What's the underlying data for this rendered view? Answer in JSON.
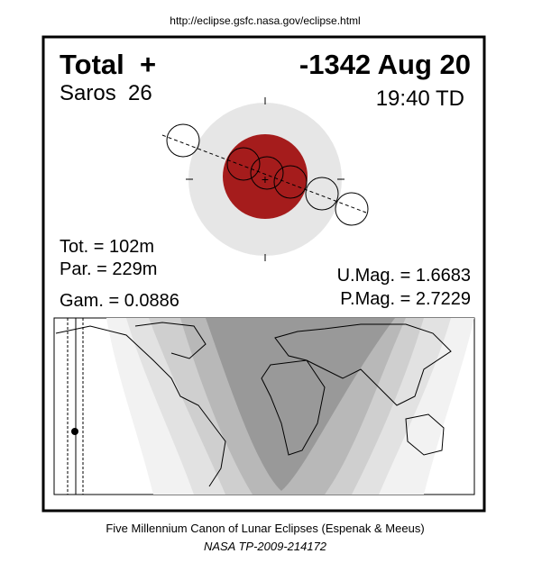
{
  "header": {
    "url": "http://eclipse.gsfc.nasa.gov/eclipse.html"
  },
  "panel": {
    "eclipse_type": "Total  +",
    "date": "-1342 Aug 20",
    "saros": "Saros  26",
    "time": "19:40 TD",
    "totality": "Tot. = 102m",
    "partial": "Par. = 229m",
    "gamma": "Gam. = 0.0886",
    "umbral_magnitude": "U.Mag. = 1.6683",
    "penumbral_magnitude": "P.Mag. = 2.7229"
  },
  "footer": {
    "source": "Five Millennium Canon of Lunar Eclipses (Espenak & Meeus)",
    "reference": "NASA TP-2009-214172"
  }
}
